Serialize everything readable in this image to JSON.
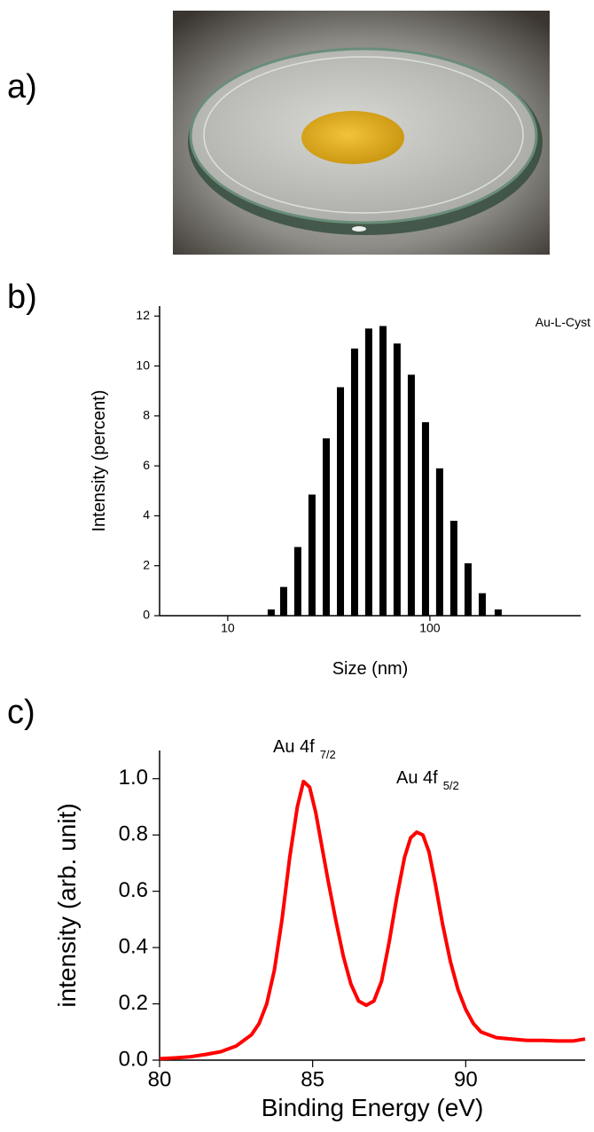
{
  "panel_labels": [
    "a)",
    "b)",
    "c)"
  ],
  "chart_data": [
    {
      "type": "bar",
      "xscale": "log",
      "x_label": "Size (nm)",
      "y_label": "Intensity (percent)",
      "x": [
        16.4,
        18.9,
        22.2,
        26.1,
        30.7,
        36.1,
        42.4,
        49.8,
        58.6,
        68.8,
        80.9,
        95.1,
        111.7,
        131.3,
        154.4,
        181.5,
        217.6
      ],
      "series": [
        {
          "name": "Au-L-Cyst",
          "color": "#000000",
          "values": [
            0.25,
            1.15,
            2.75,
            4.85,
            7.1,
            9.15,
            10.7,
            11.5,
            11.6,
            10.9,
            9.65,
            7.75,
            5.9,
            3.8,
            2.1,
            0.9,
            0.25
          ]
        }
      ],
      "xlim": [
        4.6,
        557
      ],
      "xticks": [
        10,
        100
      ],
      "ylim": [
        0,
        12.4
      ],
      "yticks": [
        0,
        2,
        4,
        6,
        8,
        10,
        12
      ]
    },
    {
      "type": "line",
      "x_label": "Binding Energy (eV)",
      "y_label": "intensity (arb. unit)",
      "annotations": [
        {
          "text": "Au 4f",
          "subscript": "7/2"
        },
        {
          "text": "Au 4f",
          "subscript": "5/2"
        }
      ],
      "x": [
        80,
        80.5,
        81,
        81.5,
        82,
        82.5,
        83,
        83.25,
        83.5,
        83.75,
        84,
        84.25,
        84.5,
        84.7,
        84.9,
        85.1,
        85.3,
        85.5,
        85.75,
        86,
        86.25,
        86.5,
        86.75,
        87,
        87.25,
        87.5,
        87.75,
        88,
        88.2,
        88.4,
        88.6,
        88.8,
        89,
        89.25,
        89.5,
        89.75,
        90,
        90.25,
        90.5,
        91,
        91.5,
        92,
        92.5,
        93,
        93.5,
        93.9
      ],
      "series": [
        {
          "color": "#ff0000",
          "values": [
            0.005,
            0.008,
            0.012,
            0.02,
            0.03,
            0.05,
            0.09,
            0.13,
            0.2,
            0.32,
            0.5,
            0.72,
            0.9,
            0.99,
            0.97,
            0.88,
            0.76,
            0.64,
            0.5,
            0.37,
            0.27,
            0.21,
            0.195,
            0.21,
            0.28,
            0.42,
            0.58,
            0.72,
            0.79,
            0.81,
            0.8,
            0.74,
            0.63,
            0.48,
            0.35,
            0.25,
            0.18,
            0.13,
            0.1,
            0.08,
            0.075,
            0.07,
            0.07,
            0.068,
            0.068,
            0.075
          ]
        }
      ],
      "xlim": [
        80,
        93.9
      ],
      "xticks": [
        80,
        85,
        90
      ],
      "ylim": [
        0,
        1.1
      ],
      "yticks": [
        {
          "value": 0,
          "label": "0.0"
        },
        0.2,
        0.4,
        0.6,
        0.8,
        {
          "value": 1,
          "label": "1.0"
        }
      ]
    }
  ]
}
